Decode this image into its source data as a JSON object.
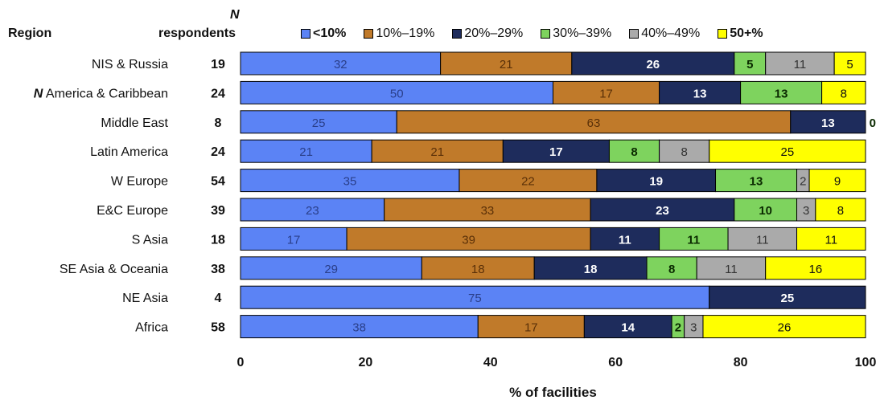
{
  "headers": {
    "region": "Region",
    "n": "N",
    "respondents": "respondents"
  },
  "chart_data": {
    "type": "bar",
    "orientation": "horizontal",
    "stacked": true,
    "xlabel": "% of facilities",
    "xlim": [
      0,
      100
    ],
    "xticks": [
      0,
      20,
      40,
      60,
      80,
      100
    ],
    "categories": [
      "NIS & Russia",
      "N America & Caribbean",
      "Middle East",
      "Latin America",
      "W Europe",
      "E&C Europe",
      "S Asia",
      "SE Asia & Oceania",
      "NE Asia",
      "Africa"
    ],
    "respondents": [
      19,
      24,
      8,
      24,
      54,
      39,
      18,
      38,
      4,
      58
    ],
    "legend_position": "top",
    "series": [
      {
        "name": "<10%",
        "color": "#5b83f5",
        "label_color": "#2a3f8a",
        "values": [
          32,
          50,
          25,
          21,
          35,
          23,
          17,
          29,
          75,
          38
        ]
      },
      {
        "name": "10%–19%",
        "color": "#c07a2a",
        "label_color": "#5a3008",
        "values": [
          21,
          17,
          63,
          21,
          22,
          33,
          39,
          18,
          0,
          17
        ]
      },
      {
        "name": "20%–29%",
        "color": "#1e2c5c",
        "label_color": "#ffffff",
        "values": [
          26,
          13,
          13,
          17,
          19,
          23,
          11,
          18,
          25,
          14
        ]
      },
      {
        "name": "30%–39%",
        "color": "#7ed35e",
        "label_color": "#0a2a00",
        "values": [
          5,
          13,
          0,
          8,
          13,
          10,
          11,
          8,
          0,
          2
        ]
      },
      {
        "name": "40%–49%",
        "color": "#aaaaaa",
        "label_color": "#333333",
        "values": [
          11,
          0,
          0,
          8,
          2,
          3,
          11,
          11,
          0,
          3
        ]
      },
      {
        "name": "50+%",
        "color": "#ffff00",
        "label_color": "#111111",
        "values": [
          5,
          8,
          0,
          25,
          9,
          8,
          11,
          16,
          0,
          26
        ]
      }
    ],
    "segment_labels": [
      [
        "32",
        "21",
        "26",
        "5",
        "11",
        "5"
      ],
      [
        "50",
        "17",
        "13",
        "13",
        "",
        "8"
      ],
      [
        "25",
        "63",
        "13",
        "0",
        "",
        ""
      ],
      [
        "21",
        "21",
        "17",
        "8",
        "8",
        "25"
      ],
      [
        "35",
        "22",
        "19",
        "13",
        "2",
        "9"
      ],
      [
        "23",
        "33",
        "23",
        "10",
        "3",
        "8"
      ],
      [
        "17",
        "39",
        "11",
        "11",
        "11",
        "11"
      ],
      [
        "29",
        "18",
        "18",
        "8",
        "11",
        "16"
      ],
      [
        "75",
        "",
        "25",
        "",
        "",
        ""
      ],
      [
        "38",
        "17",
        "14",
        "2",
        "3",
        "26"
      ]
    ]
  }
}
